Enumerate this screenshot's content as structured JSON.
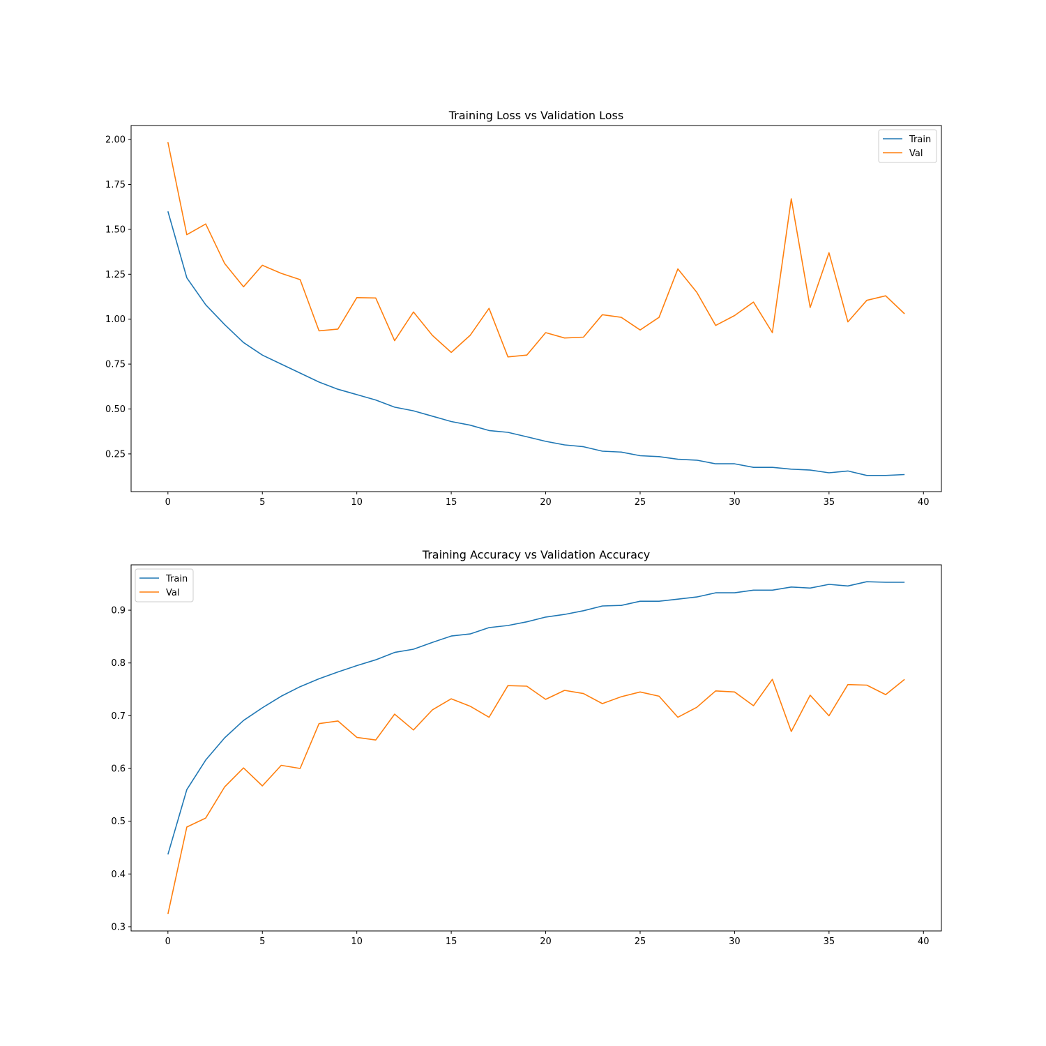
{
  "colors": {
    "train": "#1f77b4",
    "val": "#ff7f0e"
  },
  "chart_data": [
    {
      "type": "line",
      "title": "Training Loss vs Validation Loss",
      "xlabel": "",
      "ylabel": "",
      "xlim": [
        -1.95,
        40.95
      ],
      "ylim": [
        0.04,
        2.078
      ],
      "xticks": [
        0,
        5,
        10,
        15,
        20,
        25,
        30,
        35,
        40
      ],
      "yticks": [
        0.25,
        0.5,
        0.75,
        1.0,
        1.25,
        1.5,
        1.75,
        2.0
      ],
      "ytick_labels": [
        "0.25",
        "0.50",
        "0.75",
        "1.00",
        "1.25",
        "1.50",
        "1.75",
        "2.00"
      ],
      "grid": false,
      "legend": "top-right",
      "x": [
        0,
        1,
        2,
        3,
        4,
        5,
        6,
        7,
        8,
        9,
        10,
        11,
        12,
        13,
        14,
        15,
        16,
        17,
        18,
        19,
        20,
        21,
        22,
        23,
        24,
        25,
        26,
        27,
        28,
        29,
        30,
        31,
        32,
        33,
        34,
        35,
        36,
        37,
        38,
        39
      ],
      "series": [
        {
          "name": "Train",
          "color": "#1f77b4",
          "values": [
            1.6,
            1.23,
            1.08,
            0.97,
            0.87,
            0.8,
            0.75,
            0.7,
            0.65,
            0.61,
            0.58,
            0.55,
            0.51,
            0.49,
            0.46,
            0.43,
            0.41,
            0.38,
            0.37,
            0.345,
            0.32,
            0.3,
            0.29,
            0.265,
            0.26,
            0.24,
            0.235,
            0.22,
            0.215,
            0.195,
            0.195,
            0.175,
            0.175,
            0.165,
            0.16,
            0.145,
            0.155,
            0.13,
            0.13,
            0.135
          ]
        },
        {
          "name": "Val",
          "color": "#ff7f0e",
          "values": [
            1.985,
            1.47,
            1.53,
            1.31,
            1.18,
            1.3,
            1.255,
            1.22,
            0.935,
            0.945,
            1.12,
            1.118,
            0.88,
            1.04,
            0.91,
            0.815,
            0.91,
            1.06,
            0.79,
            0.8,
            0.925,
            0.895,
            0.9,
            1.025,
            1.01,
            0.94,
            1.01,
            1.28,
            1.15,
            0.965,
            1.02,
            1.095,
            0.925,
            1.67,
            1.065,
            1.37,
            0.985,
            1.105,
            1.13,
            1.03
          ]
        }
      ]
    },
    {
      "type": "line",
      "title": "Training Accuracy vs Validation Accuracy",
      "xlabel": "",
      "ylabel": "",
      "xlim": [
        -1.95,
        40.95
      ],
      "ylim": [
        0.292,
        0.986
      ],
      "xticks": [
        0,
        5,
        10,
        15,
        20,
        25,
        30,
        35,
        40
      ],
      "yticks": [
        0.3,
        0.4,
        0.5,
        0.6,
        0.7,
        0.8,
        0.9
      ],
      "ytick_labels": [
        "0.3",
        "0.4",
        "0.5",
        "0.6",
        "0.7",
        "0.8",
        "0.9"
      ],
      "grid": false,
      "legend": "top-left",
      "x": [
        0,
        1,
        2,
        3,
        4,
        5,
        6,
        7,
        8,
        9,
        10,
        11,
        12,
        13,
        14,
        15,
        16,
        17,
        18,
        19,
        20,
        21,
        22,
        23,
        24,
        25,
        26,
        27,
        28,
        29,
        30,
        31,
        32,
        33,
        34,
        35,
        36,
        37,
        38,
        39
      ],
      "series": [
        {
          "name": "Train",
          "color": "#1f77b4",
          "values": [
            0.437,
            0.56,
            0.616,
            0.658,
            0.691,
            0.715,
            0.737,
            0.755,
            0.77,
            0.783,
            0.795,
            0.806,
            0.82,
            0.826,
            0.839,
            0.851,
            0.855,
            0.867,
            0.871,
            0.878,
            0.887,
            0.892,
            0.899,
            0.908,
            0.909,
            0.917,
            0.917,
            0.921,
            0.925,
            0.933,
            0.933,
            0.938,
            0.938,
            0.944,
            0.942,
            0.949,
            0.946,
            0.954,
            0.953,
            0.953
          ]
        },
        {
          "name": "Val",
          "color": "#ff7f0e",
          "values": [
            0.324,
            0.489,
            0.506,
            0.565,
            0.601,
            0.567,
            0.606,
            0.6,
            0.685,
            0.69,
            0.659,
            0.654,
            0.703,
            0.673,
            0.711,
            0.732,
            0.718,
            0.697,
            0.757,
            0.756,
            0.731,
            0.748,
            0.742,
            0.723,
            0.736,
            0.745,
            0.737,
            0.697,
            0.716,
            0.747,
            0.745,
            0.719,
            0.769,
            0.67,
            0.739,
            0.7,
            0.759,
            0.758,
            0.74,
            0.769
          ]
        }
      ]
    }
  ]
}
